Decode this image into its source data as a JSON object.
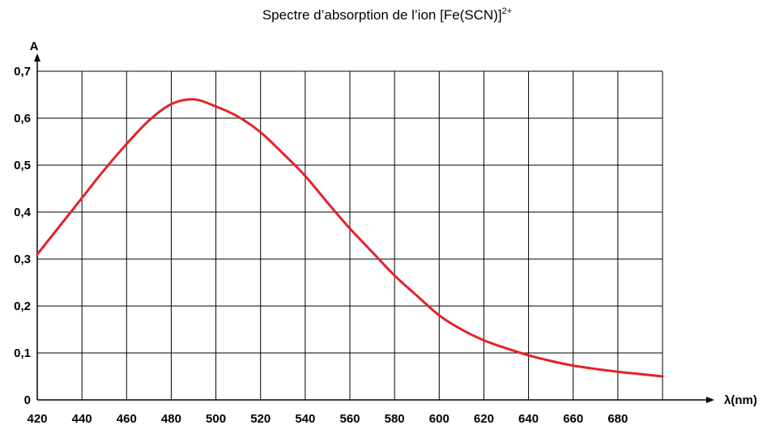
{
  "chart_data": {
    "type": "line",
    "title_main": "Spectre d’absorption de l’ion [Fe(SCN)]",
    "title_sup": "2+",
    "xlabel": "λ(nm)",
    "ylabel": "A",
    "xlim": [
      420,
      700
    ],
    "ylim": [
      0,
      0.7
    ],
    "x_ticks": [
      420,
      440,
      460,
      480,
      500,
      520,
      540,
      560,
      580,
      600,
      620,
      640,
      660,
      680
    ],
    "x_tick_labels": [
      "420",
      "440",
      "460",
      "480",
      "500",
      "520",
      "540",
      "560",
      "580",
      "600",
      "620",
      "640",
      "660",
      "680"
    ],
    "y_ticks": [
      0,
      0.1,
      0.2,
      0.3,
      0.4,
      0.5,
      0.6,
      0.7
    ],
    "y_tick_labels": [
      "0",
      "0,1",
      "0,2",
      "0,3",
      "0,4",
      "0,5",
      "0,6",
      "0,7"
    ],
    "grid": true,
    "line_color": "#e32229",
    "series": [
      {
        "x": [
          420,
          430,
          440,
          450,
          460,
          470,
          480,
          490,
          500,
          510,
          520,
          530,
          540,
          550,
          560,
          570,
          580,
          590,
          600,
          610,
          620,
          630,
          640,
          650,
          660,
          670,
          680,
          690,
          700
        ],
        "values": [
          0.31,
          0.37,
          0.43,
          0.49,
          0.545,
          0.595,
          0.63,
          0.64,
          0.625,
          0.603,
          0.57,
          0.525,
          0.477,
          0.42,
          0.365,
          0.315,
          0.265,
          0.222,
          0.18,
          0.15,
          0.127,
          0.11,
          0.095,
          0.083,
          0.073,
          0.066,
          0.06,
          0.055,
          0.05
        ]
      }
    ]
  }
}
